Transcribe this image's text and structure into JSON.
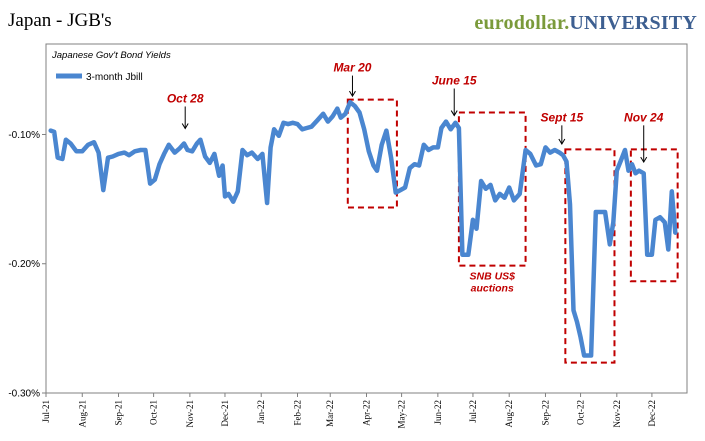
{
  "header": {
    "title": "Japan - JGB's",
    "brand_part1": "eurodollar.",
    "brand_part2": "UNIVERSITY"
  },
  "chart_data": {
    "type": "line",
    "subtitle": "Japanese Gov't Bond Yields",
    "legend": {
      "position": "top-left",
      "entries": [
        "3-month Jbill"
      ]
    },
    "xlabel": "",
    "ylabel": "",
    "x_ticks": [
      "Jul-21",
      "Aug-21",
      "Sep-21",
      "Oct-21",
      "Nov-21",
      "Dec-21",
      "Jan-22",
      "Feb-22",
      "Mar-22",
      "Apr-22",
      "May-22",
      "Jun-22",
      "Jul-22",
      "Aug-22",
      "Sep-22",
      "Oct-22",
      "Nov-22",
      "Dec-22"
    ],
    "x_range": [
      "2021-07-01",
      "2022-12-31"
    ],
    "y_ticks": [
      "-0.10%",
      "-0.20%",
      "-0.30%"
    ],
    "y_tick_values": [
      -0.1,
      -0.2,
      -0.3
    ],
    "ylim": [
      -0.3,
      -0.03
    ],
    "series": [
      {
        "name": "3-month Jbill",
        "color": "#4a86d0",
        "points": [
          [
            "2021-07-05",
            -0.097
          ],
          [
            "2021-07-08",
            -0.098
          ],
          [
            "2021-07-11",
            -0.118
          ],
          [
            "2021-07-15",
            -0.119
          ],
          [
            "2021-07-18",
            -0.104
          ],
          [
            "2021-07-22",
            -0.107
          ],
          [
            "2021-07-27",
            -0.113
          ],
          [
            "2021-08-01",
            -0.113
          ],
          [
            "2021-08-06",
            -0.108
          ],
          [
            "2021-08-11",
            -0.106
          ],
          [
            "2021-08-15",
            -0.114
          ],
          [
            "2021-08-19",
            -0.143
          ],
          [
            "2021-08-23",
            -0.118
          ],
          [
            "2021-08-27",
            -0.117
          ],
          [
            "2021-09-01",
            -0.115
          ],
          [
            "2021-09-06",
            -0.114
          ],
          [
            "2021-09-10",
            -0.116
          ],
          [
            "2021-09-15",
            -0.113
          ],
          [
            "2021-09-20",
            -0.112
          ],
          [
            "2021-09-24",
            -0.112
          ],
          [
            "2021-09-28",
            -0.138
          ],
          [
            "2021-10-02",
            -0.135
          ],
          [
            "2021-10-06",
            -0.123
          ],
          [
            "2021-10-10",
            -0.115
          ],
          [
            "2021-10-14",
            -0.108
          ],
          [
            "2021-10-19",
            -0.114
          ],
          [
            "2021-10-23",
            -0.111
          ],
          [
            "2021-10-27",
            -0.107
          ],
          [
            "2021-10-30",
            -0.112
          ],
          [
            "2021-11-03",
            -0.113
          ],
          [
            "2021-11-07",
            -0.107
          ],
          [
            "2021-11-10",
            -0.104
          ],
          [
            "2021-11-14",
            -0.117
          ],
          [
            "2021-11-18",
            -0.122
          ],
          [
            "2021-11-22",
            -0.115
          ],
          [
            "2021-11-26",
            -0.132
          ],
          [
            "2021-11-29",
            -0.124
          ],
          [
            "2021-12-01",
            -0.148
          ],
          [
            "2021-12-04",
            -0.146
          ],
          [
            "2021-12-08",
            -0.152
          ],
          [
            "2021-12-12",
            -0.144
          ],
          [
            "2021-12-16",
            -0.112
          ],
          [
            "2021-12-20",
            -0.116
          ],
          [
            "2021-12-24",
            -0.114
          ],
          [
            "2021-12-29",
            -0.119
          ],
          [
            "2022-01-02",
            -0.115
          ],
          [
            "2022-01-06",
            -0.153
          ],
          [
            "2022-01-09",
            -0.11
          ],
          [
            "2022-01-12",
            -0.096
          ],
          [
            "2022-01-16",
            -0.101
          ],
          [
            "2022-01-20",
            -0.091
          ],
          [
            "2022-01-24",
            -0.092
          ],
          [
            "2022-01-28",
            -0.091
          ],
          [
            "2022-02-01",
            -0.092
          ],
          [
            "2022-02-05",
            -0.096
          ],
          [
            "2022-02-09",
            -0.095
          ],
          [
            "2022-02-13",
            -0.094
          ],
          [
            "2022-02-18",
            -0.089
          ],
          [
            "2022-02-23",
            -0.084
          ],
          [
            "2022-02-27",
            -0.09
          ],
          [
            "2022-03-03",
            -0.086
          ],
          [
            "2022-03-07",
            -0.08
          ],
          [
            "2022-03-10",
            -0.087
          ],
          [
            "2022-03-14",
            -0.084
          ],
          [
            "2022-03-18",
            -0.075
          ],
          [
            "2022-03-22",
            -0.078
          ],
          [
            "2022-03-26",
            -0.083
          ],
          [
            "2022-03-30",
            -0.096
          ],
          [
            "2022-04-03",
            -0.113
          ],
          [
            "2022-04-07",
            -0.124
          ],
          [
            "2022-04-10",
            -0.128
          ],
          [
            "2022-04-14",
            -0.108
          ],
          [
            "2022-04-18",
            -0.097
          ],
          [
            "2022-04-22",
            -0.118
          ],
          [
            "2022-04-26",
            -0.145
          ],
          [
            "2022-04-30",
            -0.143
          ],
          [
            "2022-05-04",
            -0.141
          ],
          [
            "2022-05-08",
            -0.126
          ],
          [
            "2022-05-12",
            -0.123
          ],
          [
            "2022-05-16",
            -0.124
          ],
          [
            "2022-05-20",
            -0.108
          ],
          [
            "2022-05-24",
            -0.112
          ],
          [
            "2022-05-28",
            -0.11
          ],
          [
            "2022-06-01",
            -0.11
          ],
          [
            "2022-06-04",
            -0.095
          ],
          [
            "2022-06-08",
            -0.09
          ],
          [
            "2022-06-12",
            -0.096
          ],
          [
            "2022-06-16",
            -0.091
          ],
          [
            "2022-06-19",
            -0.095
          ],
          [
            "2022-06-22",
            -0.193
          ],
          [
            "2022-06-27",
            -0.193
          ],
          [
            "2022-07-01",
            -0.166
          ],
          [
            "2022-07-04",
            -0.173
          ],
          [
            "2022-07-08",
            -0.136
          ],
          [
            "2022-07-12",
            -0.142
          ],
          [
            "2022-07-16",
            -0.139
          ],
          [
            "2022-07-20",
            -0.151
          ],
          [
            "2022-07-24",
            -0.146
          ],
          [
            "2022-07-28",
            -0.149
          ],
          [
            "2022-08-01",
            -0.141
          ],
          [
            "2022-08-05",
            -0.151
          ],
          [
            "2022-08-10",
            -0.146
          ],
          [
            "2022-08-15",
            -0.112
          ],
          [
            "2022-08-19",
            -0.115
          ],
          [
            "2022-08-24",
            -0.124
          ],
          [
            "2022-08-28",
            -0.123
          ],
          [
            "2022-09-01",
            -0.11
          ],
          [
            "2022-09-05",
            -0.114
          ],
          [
            "2022-09-09",
            -0.112
          ],
          [
            "2022-09-13",
            -0.114
          ],
          [
            "2022-09-16",
            -0.116
          ],
          [
            "2022-09-19",
            -0.121
          ],
          [
            "2022-09-22",
            -0.154
          ],
          [
            "2022-09-25",
            -0.236
          ],
          [
            "2022-09-28",
            -0.245
          ],
          [
            "2022-10-01",
            -0.257
          ],
          [
            "2022-10-04",
            -0.271
          ],
          [
            "2022-10-10",
            -0.271
          ],
          [
            "2022-10-14",
            -0.16
          ],
          [
            "2022-10-22",
            -0.16
          ],
          [
            "2022-10-26",
            -0.185
          ],
          [
            "2022-10-29",
            -0.168
          ],
          [
            "2022-11-01",
            -0.128
          ],
          [
            "2022-11-05",
            -0.119
          ],
          [
            "2022-11-08",
            -0.112
          ],
          [
            "2022-11-11",
            -0.128
          ],
          [
            "2022-11-14",
            -0.123
          ],
          [
            "2022-11-17",
            -0.13
          ],
          [
            "2022-11-20",
            -0.128
          ],
          [
            "2022-11-24",
            -0.13
          ],
          [
            "2022-11-27",
            -0.193
          ],
          [
            "2022-12-01",
            -0.193
          ],
          [
            "2022-12-04",
            -0.166
          ],
          [
            "2022-12-08",
            -0.164
          ],
          [
            "2022-12-12",
            -0.168
          ],
          [
            "2022-12-15",
            -0.189
          ],
          [
            "2022-12-18",
            -0.144
          ],
          [
            "2022-12-21",
            -0.176
          ]
        ]
      }
    ],
    "annotations": [
      {
        "text": "Oct 28",
        "date": "2021-10-28",
        "value": -0.1,
        "box": null
      },
      {
        "text": "Mar 20",
        "date": "2022-03-20",
        "value": -0.075,
        "box": {
          "x0": "2022-03-16",
          "x1": "2022-04-27",
          "y0": -0.1565,
          "y1": -0.073
        }
      },
      {
        "text": "June 15",
        "date": "2022-06-15",
        "value": -0.09,
        "box": {
          "x0": "2022-06-19",
          "x1": "2022-08-15",
          "y0": -0.2015,
          "y1": -0.083
        }
      },
      {
        "text": "Sept 15",
        "date": "2022-09-15",
        "value": -0.112,
        "box": {
          "x0": "2022-09-18",
          "x1": "2022-10-30",
          "y0": -0.2765,
          "y1": -0.1115
        }
      },
      {
        "text": "Nov 24",
        "date": "2022-11-24",
        "value": -0.126,
        "box": {
          "x0": "2022-11-13",
          "x1": "2022-12-23",
          "y0": -0.2135,
          "y1": -0.1115
        }
      }
    ],
    "box_note": [
      "SNB US$",
      "auctions"
    ],
    "colors": {
      "line": "#4a86d0",
      "annotation": "#c00000"
    },
    "grid": false
  }
}
